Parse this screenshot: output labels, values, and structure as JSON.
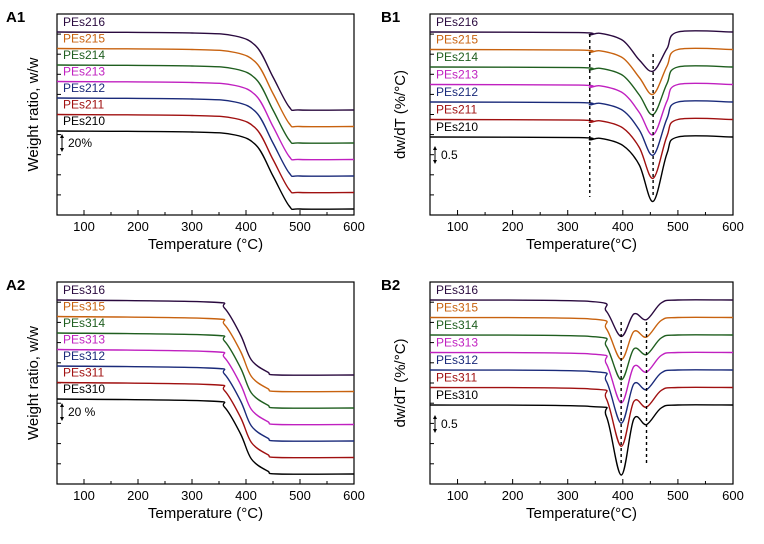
{
  "colors": [
    "#2a0a3f",
    "#c8620f",
    "#1f5e1f",
    "#c020c0",
    "#1a2a7a",
    "#a01010",
    "#000000"
  ],
  "chart_data": [
    {
      "id": "A1",
      "type": "line",
      "panel_label": "A1",
      "xlabel": "Temperature  (°C)",
      "ylabel": "Weight ratio, w/w",
      "xlim": [
        50,
        600
      ],
      "xticks": [
        "100",
        "200",
        "300",
        "400",
        "500",
        "600"
      ],
      "scale_bar": "20%",
      "series": [
        {
          "name": "PEs216",
          "x": [
            50,
            300,
            380,
            420,
            450,
            480,
            500,
            600
          ],
          "y": [
            0,
            -1,
            -4,
            -15,
            -45,
            -75,
            -78,
            -78
          ]
        },
        {
          "name": "PEs215",
          "x": [
            50,
            300,
            380,
            420,
            450,
            480,
            500,
            600
          ],
          "y": [
            0,
            -1,
            -4,
            -15,
            -45,
            -75,
            -78,
            -78
          ]
        },
        {
          "name": "PEs214",
          "x": [
            50,
            300,
            380,
            420,
            450,
            480,
            500,
            600
          ],
          "y": [
            0,
            -1,
            -4,
            -15,
            -45,
            -75,
            -78,
            -78
          ]
        },
        {
          "name": "PEs213",
          "x": [
            50,
            300,
            380,
            420,
            450,
            480,
            500,
            600
          ],
          "y": [
            0,
            -1,
            -4,
            -15,
            -45,
            -75,
            -78,
            -78
          ]
        },
        {
          "name": "PEs212",
          "x": [
            50,
            300,
            380,
            420,
            450,
            480,
            500,
            600
          ],
          "y": [
            0,
            -1,
            -4,
            -15,
            -45,
            -75,
            -78,
            -78
          ]
        },
        {
          "name": "PEs211",
          "x": [
            50,
            300,
            380,
            420,
            450,
            480,
            500,
            600
          ],
          "y": [
            0,
            -1,
            -4,
            -15,
            -45,
            -75,
            -78,
            -78
          ]
        },
        {
          "name": "PEs210",
          "x": [
            50,
            300,
            380,
            420,
            450,
            480,
            500,
            600
          ],
          "y": [
            0,
            -1,
            -4,
            -15,
            -45,
            -75,
            -78,
            -78
          ]
        }
      ]
    },
    {
      "id": "B1",
      "type": "line",
      "panel_label": "B1",
      "xlabel": "Temperature(°C)",
      "ylabel": "dw/dT (%/°C)",
      "xlim": [
        50,
        600
      ],
      "xticks": [
        "100",
        "200",
        "300",
        "400",
        "500",
        "600"
      ],
      "scale_bar": "0.5",
      "guide_lines_x": [
        340,
        455
      ],
      "series": [
        {
          "name": "PEs216",
          "x": [
            50,
            320,
            340,
            360,
            400,
            430,
            455,
            480,
            500,
            600
          ],
          "y": [
            0,
            -0.02,
            -0.1,
            -0.05,
            -0.3,
            -1.0,
            -1.4,
            -0.6,
            0,
            0
          ]
        },
        {
          "name": "PEs215",
          "x": [
            50,
            320,
            340,
            360,
            400,
            430,
            455,
            480,
            500,
            600
          ],
          "y": [
            0,
            -0.02,
            -0.1,
            -0.05,
            -0.3,
            -1.0,
            -1.6,
            -0.6,
            0,
            0
          ]
        },
        {
          "name": "PEs214",
          "x": [
            50,
            320,
            340,
            360,
            400,
            430,
            455,
            480,
            500,
            600
          ],
          "y": [
            0,
            -0.02,
            -0.1,
            -0.05,
            -0.3,
            -1.0,
            -1.7,
            -0.6,
            0,
            0
          ]
        },
        {
          "name": "PEs213",
          "x": [
            50,
            320,
            340,
            360,
            400,
            430,
            455,
            480,
            500,
            600
          ],
          "y": [
            0,
            -0.02,
            -0.1,
            -0.05,
            -0.3,
            -1.0,
            -1.8,
            -0.6,
            0,
            0
          ]
        },
        {
          "name": "PEs212",
          "x": [
            50,
            320,
            340,
            360,
            400,
            430,
            455,
            480,
            500,
            600
          ],
          "y": [
            0,
            -0.02,
            -0.1,
            -0.05,
            -0.3,
            -1.0,
            -1.9,
            -0.6,
            0,
            0
          ]
        },
        {
          "name": "PEs211",
          "x": [
            50,
            320,
            340,
            360,
            400,
            430,
            455,
            480,
            500,
            600
          ],
          "y": [
            0,
            -0.02,
            -0.1,
            -0.05,
            -0.3,
            -1.0,
            -2.1,
            -0.6,
            0,
            0
          ]
        },
        {
          "name": "PEs210",
          "x": [
            50,
            320,
            340,
            360,
            400,
            430,
            455,
            480,
            500,
            600
          ],
          "y": [
            0,
            -0.02,
            -0.1,
            -0.05,
            -0.3,
            -1.0,
            -2.3,
            -0.6,
            0,
            0
          ]
        }
      ]
    },
    {
      "id": "A2",
      "type": "line",
      "panel_label": "A2",
      "xlabel": "Temperature  (°C)",
      "ylabel": "Weight ratio, w/w",
      "xlim": [
        50,
        600
      ],
      "xticks": [
        "100",
        "200",
        "300",
        "400",
        "500",
        "600"
      ],
      "scale_bar": "20 %",
      "series": [
        {
          "name": "PEs316",
          "x": [
            50,
            330,
            360,
            390,
            410,
            440,
            460,
            600
          ],
          "y": [
            0,
            -2,
            -8,
            -35,
            -60,
            -72,
            -75,
            -75
          ]
        },
        {
          "name": "PEs315",
          "x": [
            50,
            330,
            360,
            390,
            410,
            440,
            460,
            600
          ],
          "y": [
            0,
            -2,
            -8,
            -35,
            -60,
            -72,
            -75,
            -75
          ]
        },
        {
          "name": "PEs314",
          "x": [
            50,
            330,
            360,
            390,
            410,
            440,
            460,
            600
          ],
          "y": [
            0,
            -2,
            -8,
            -35,
            -60,
            -72,
            -75,
            -75
          ]
        },
        {
          "name": "PEs313",
          "x": [
            50,
            330,
            360,
            390,
            410,
            440,
            460,
            600
          ],
          "y": [
            0,
            -2,
            -8,
            -35,
            -60,
            -72,
            -75,
            -75
          ]
        },
        {
          "name": "PEs312",
          "x": [
            50,
            330,
            360,
            390,
            410,
            440,
            460,
            600
          ],
          "y": [
            0,
            -2,
            -8,
            -35,
            -60,
            -72,
            -75,
            -75
          ]
        },
        {
          "name": "PEs311",
          "x": [
            50,
            330,
            360,
            390,
            410,
            440,
            460,
            600
          ],
          "y": [
            0,
            -2,
            -8,
            -35,
            -60,
            -72,
            -75,
            -75
          ]
        },
        {
          "name": "PEs310",
          "x": [
            50,
            330,
            360,
            390,
            410,
            440,
            460,
            600
          ],
          "y": [
            0,
            -2,
            -8,
            -35,
            -60,
            -72,
            -75,
            -75
          ]
        }
      ]
    },
    {
      "id": "B2",
      "type": "line",
      "panel_label": "B2",
      "xlabel": "Temperature(°C)",
      "ylabel": "dw/dT (%/°C)",
      "xlim": [
        50,
        600
      ],
      "xticks": [
        "100",
        "200",
        "300",
        "400",
        "500",
        "600"
      ],
      "scale_bar": "0.5",
      "guide_lines_x": [
        397,
        443
      ],
      "series": [
        {
          "name": "PEs316",
          "x": [
            50,
            340,
            370,
            397,
            420,
            443,
            470,
            500,
            600
          ],
          "y": [
            0,
            -0.05,
            -0.4,
            -1.3,
            -0.5,
            -0.7,
            -0.1,
            0,
            0
          ]
        },
        {
          "name": "PEs315",
          "x": [
            50,
            340,
            370,
            397,
            420,
            443,
            470,
            500,
            600
          ],
          "y": [
            0,
            -0.05,
            -0.4,
            -1.5,
            -0.5,
            -0.7,
            -0.1,
            0,
            0
          ]
        },
        {
          "name": "PEs314",
          "x": [
            50,
            340,
            370,
            397,
            420,
            443,
            470,
            500,
            600
          ],
          "y": [
            0,
            -0.05,
            -0.4,
            -1.6,
            -0.5,
            -0.7,
            -0.1,
            0,
            0
          ]
        },
        {
          "name": "PEs313",
          "x": [
            50,
            340,
            370,
            397,
            420,
            443,
            470,
            500,
            600
          ],
          "y": [
            0,
            -0.05,
            -0.4,
            -1.8,
            -0.5,
            -0.7,
            -0.1,
            0,
            0
          ]
        },
        {
          "name": "PEs312",
          "x": [
            50,
            340,
            370,
            397,
            420,
            443,
            470,
            500,
            600
          ],
          "y": [
            0,
            -0.05,
            -0.4,
            -1.9,
            -0.5,
            -0.7,
            -0.1,
            0,
            0
          ]
        },
        {
          "name": "PEs311",
          "x": [
            50,
            340,
            370,
            397,
            420,
            443,
            470,
            500,
            600
          ],
          "y": [
            0,
            -0.05,
            -0.4,
            -2.1,
            -0.5,
            -0.7,
            -0.1,
            0,
            0
          ]
        },
        {
          "name": "PEs310",
          "x": [
            50,
            340,
            370,
            397,
            420,
            443,
            470,
            500,
            600
          ],
          "y": [
            0,
            -0.05,
            -0.4,
            -2.5,
            -0.5,
            -0.7,
            -0.1,
            0,
            0
          ]
        }
      ]
    }
  ]
}
